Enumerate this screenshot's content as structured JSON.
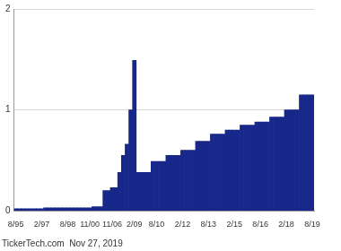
{
  "chart_data": {
    "type": "bar",
    "categories": [
      "8/95",
      null,
      null,
      null,
      null,
      null,
      null,
      "2/97",
      null,
      null,
      null,
      null,
      null,
      null,
      "8/98",
      null,
      null,
      null,
      null,
      null,
      "11/00",
      null,
      null,
      null,
      null,
      null,
      "11/06",
      null,
      null,
      null,
      null,
      null,
      "2/09",
      null,
      null,
      null,
      null,
      null,
      "8/10",
      null,
      null,
      null,
      null,
      null,
      null,
      "2/12",
      null,
      null,
      null,
      null,
      null,
      null,
      "8/13",
      null,
      null,
      null,
      null,
      null,
      null,
      "2/15",
      null,
      null,
      null,
      null,
      null,
      null,
      "8/16",
      null,
      null,
      null,
      null,
      null,
      null,
      "2/18",
      null,
      null,
      null,
      null,
      null,
      null,
      "8/19"
    ],
    "values": [
      0.02,
      0.02,
      0.02,
      0.02,
      0.02,
      0.02,
      0.02,
      0.02,
      0.03,
      0.03,
      0.03,
      0.03,
      0.03,
      0.03,
      0.03,
      0.03,
      0.03,
      0.03,
      0.03,
      0.03,
      0.03,
      0.04,
      0.04,
      0.04,
      0.2,
      0.2,
      0.23,
      0.23,
      0.38,
      0.55,
      0.66,
      1.0,
      1.49,
      0.38,
      0.38,
      0.38,
      0.38,
      0.49,
      0.49,
      0.49,
      0.49,
      0.55,
      0.55,
      0.55,
      0.55,
      0.6,
      0.6,
      0.6,
      0.6,
      0.69,
      0.69,
      0.69,
      0.69,
      0.76,
      0.76,
      0.76,
      0.76,
      0.8,
      0.8,
      0.8,
      0.8,
      0.85,
      0.85,
      0.85,
      0.85,
      0.88,
      0.88,
      0.88,
      0.88,
      0.93,
      0.93,
      0.93,
      0.93,
      1.0,
      1.0,
      1.0,
      1.0,
      1.15,
      1.15,
      1.15,
      1.15
    ],
    "color": "#17288a",
    "ylim": [
      0,
      2
    ],
    "yticks": [
      0,
      1,
      2
    ],
    "grid": true,
    "annotations": [
      "TickerTech.com  Nov 27, 2019"
    ]
  }
}
